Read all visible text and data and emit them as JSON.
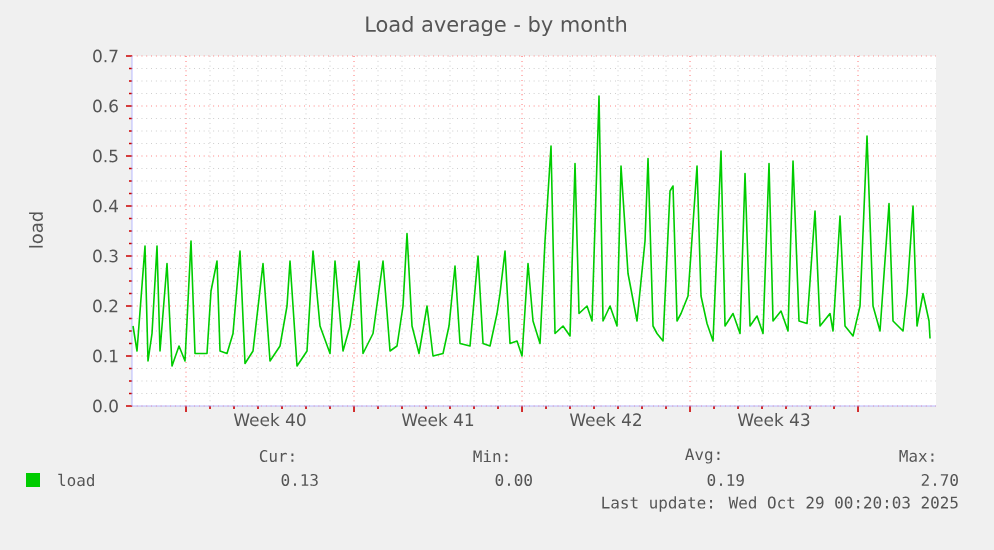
{
  "chart_data": {
    "type": "line",
    "title": "Load average - by month",
    "ylabel": "load",
    "x": [
      "2025-09-25T19:00",
      "2025-09-25T23:00",
      "2025-09-26T07:00",
      "2025-09-26T10:00",
      "2025-09-26T14:00",
      "2025-09-26T19:00",
      "2025-09-26T22:00",
      "2025-09-27T05:00",
      "2025-09-27T10:00",
      "2025-09-27T17:00",
      "2025-09-27T23:00",
      "2025-09-28T05:00",
      "2025-09-28T09:00",
      "2025-09-28T21:00",
      "2025-09-29T01:00",
      "2025-09-29T07:00",
      "2025-09-29T10:00",
      "2025-09-29T17:00",
      "2025-09-29T23:00",
      "2025-09-30T06:00",
      "2025-09-30T11:00",
      "2025-09-30T19:00",
      "2025-10-01T05:00",
      "2025-10-01T12:00",
      "2025-10-01T22:00",
      "2025-10-02T05:00",
      "2025-10-02T08:00",
      "2025-10-02T15:00",
      "2025-10-03T01:00",
      "2025-10-03T07:00",
      "2025-10-03T14:00",
      "2025-10-04T00:00",
      "2025-10-04T05:00",
      "2025-10-04T13:00",
      "2025-10-04T20:00",
      "2025-10-05T05:00",
      "2025-10-05T09:00",
      "2025-10-05T19:00",
      "2025-10-06T05:00",
      "2025-10-06T12:00",
      "2025-10-06T19:00",
      "2025-10-07T01:00",
      "2025-10-07T05:00",
      "2025-10-07T10:00",
      "2025-10-07T17:00",
      "2025-10-08T01:00",
      "2025-10-08T07:00",
      "2025-10-08T17:00",
      "2025-10-08T23:00",
      "2025-10-09T05:00",
      "2025-10-09T10:00",
      "2025-10-09T20:00",
      "2025-10-10T04:00",
      "2025-10-10T09:00",
      "2025-10-10T16:00",
      "2025-10-10T23:00",
      "2025-10-11T02:00",
      "2025-10-11T07:00",
      "2025-10-11T12:00",
      "2025-10-11T19:00",
      "2025-10-12T00:00",
      "2025-10-12T06:00",
      "2025-10-12T11:00",
      "2025-10-12T18:00",
      "2025-10-12T23:00",
      "2025-10-13T05:00",
      "2025-10-13T09:00",
      "2025-10-13T17:00",
      "2025-10-14T00:00",
      "2025-10-14T05:00",
      "2025-10-14T09:00",
      "2025-10-14T17:00",
      "2025-10-14T22:00",
      "2025-10-15T05:00",
      "2025-10-15T09:00",
      "2025-10-15T16:00",
      "2025-10-15T23:00",
      "2025-10-16T03:00",
      "2025-10-16T10:00",
      "2025-10-16T19:00",
      "2025-10-17T03:00",
      "2025-10-17T06:00",
      "2025-10-17T11:00",
      "2025-10-17T15:00",
      "2025-10-17T21:00",
      "2025-10-18T04:00",
      "2025-10-18T07:00",
      "2025-10-18T11:00",
      "2025-10-18T15:00",
      "2025-10-18T22:00",
      "2025-10-19T07:00",
      "2025-10-19T11:00",
      "2025-10-19T17:00",
      "2025-10-19T23:00",
      "2025-10-20T07:00",
      "2025-10-20T11:00",
      "2025-10-20T19:00",
      "2025-10-21T02:00",
      "2025-10-21T07:00",
      "2025-10-21T12:00",
      "2025-10-21T19:00",
      "2025-10-22T01:00",
      "2025-10-22T07:00",
      "2025-10-22T11:00",
      "2025-10-22T19:00",
      "2025-10-23T02:00",
      "2025-10-23T07:00",
      "2025-10-23T13:00",
      "2025-10-23T21:00",
      "2025-10-24T05:00",
      "2025-10-24T10:00",
      "2025-10-24T20:00",
      "2025-10-24T23:00",
      "2025-10-25T06:00",
      "2025-10-25T11:00",
      "2025-10-25T19:00",
      "2025-10-26T02:00",
      "2025-10-26T09:00",
      "2025-10-26T15:00",
      "2025-10-26T22:00",
      "2025-10-27T07:00",
      "2025-10-27T11:00",
      "2025-10-27T21:00",
      "2025-10-28T01:00",
      "2025-10-28T07:00",
      "2025-10-28T11:00",
      "2025-10-28T17:00",
      "2025-10-28T23:00",
      "2025-10-29T00:00"
    ],
    "series": [
      {
        "name": "load",
        "color": "#00cc00",
        "values": [
          0.16,
          0.11,
          0.32,
          0.09,
          0.145,
          0.32,
          0.11,
          0.285,
          0.08,
          0.12,
          0.09,
          0.33,
          0.105,
          0.105,
          0.23,
          0.29,
          0.11,
          0.105,
          0.145,
          0.31,
          0.085,
          0.11,
          0.285,
          0.09,
          0.12,
          0.2,
          0.29,
          0.08,
          0.11,
          0.31,
          0.16,
          0.105,
          0.29,
          0.11,
          0.16,
          0.29,
          0.105,
          0.145,
          0.29,
          0.11,
          0.12,
          0.2,
          0.345,
          0.16,
          0.105,
          0.2,
          0.1,
          0.105,
          0.16,
          0.28,
          0.125,
          0.12,
          0.3,
          0.125,
          0.12,
          0.185,
          0.225,
          0.31,
          0.125,
          0.13,
          0.1,
          0.285,
          0.17,
          0.125,
          0.33,
          0.52,
          0.145,
          0.16,
          0.14,
          0.485,
          0.185,
          0.2,
          0.17,
          0.62,
          0.17,
          0.2,
          0.16,
          0.48,
          0.265,
          0.17,
          0.33,
          0.495,
          0.16,
          0.145,
          0.13,
          0.43,
          0.44,
          0.17,
          0.185,
          0.22,
          0.48,
          0.22,
          0.165,
          0.13,
          0.51,
          0.16,
          0.185,
          0.145,
          0.465,
          0.16,
          0.18,
          0.145,
          0.485,
          0.17,
          0.19,
          0.15,
          0.49,
          0.17,
          0.165,
          0.39,
          0.16,
          0.185,
          0.15,
          0.38,
          0.16,
          0.14,
          0.2,
          0.54,
          0.2,
          0.15,
          0.405,
          0.17,
          0.15,
          0.225,
          0.4,
          0.16,
          0.225,
          0.17,
          0.135
        ]
      }
    ],
    "xlim": [
      "2025-09-25T18:00",
      "2025-10-29T06:00"
    ],
    "xticks": [
      {
        "value": "2025-09-28",
        "label": null
      },
      {
        "value": "2025-10-01T12:00",
        "label": "Week 40"
      },
      {
        "value": "2025-10-05",
        "label": null
      },
      {
        "value": "2025-10-08T12:00",
        "label": "Week 41"
      },
      {
        "value": "2025-10-12",
        "label": null
      },
      {
        "value": "2025-10-15T12:00",
        "label": "Week 42"
      },
      {
        "value": "2025-10-19",
        "label": null
      },
      {
        "value": "2025-10-22T12:00",
        "label": "Week 43"
      },
      {
        "value": "2025-10-26",
        "label": null
      }
    ],
    "ylim": [
      0,
      0.7
    ],
    "yticks": [
      {
        "value": 0,
        "label": "0.0"
      },
      {
        "value": 0.1,
        "label": "0.1"
      },
      {
        "value": 0.2,
        "label": "0.2"
      },
      {
        "value": 0.3,
        "label": "0.3"
      },
      {
        "value": 0.4,
        "label": "0.4"
      },
      {
        "value": 0.5,
        "label": "0.5"
      },
      {
        "value": 0.6,
        "label": "0.6"
      },
      {
        "value": 0.7,
        "label": "0.7"
      }
    ],
    "grid": true,
    "legend": "bottom",
    "annotations": [
      "Cur:",
      "0.13",
      "Min:",
      "0.00",
      "Avg:",
      "0.19",
      "Max:",
      "2.70",
      "Last update: Wed Oct 29 00:20:03 2025"
    ]
  }
}
